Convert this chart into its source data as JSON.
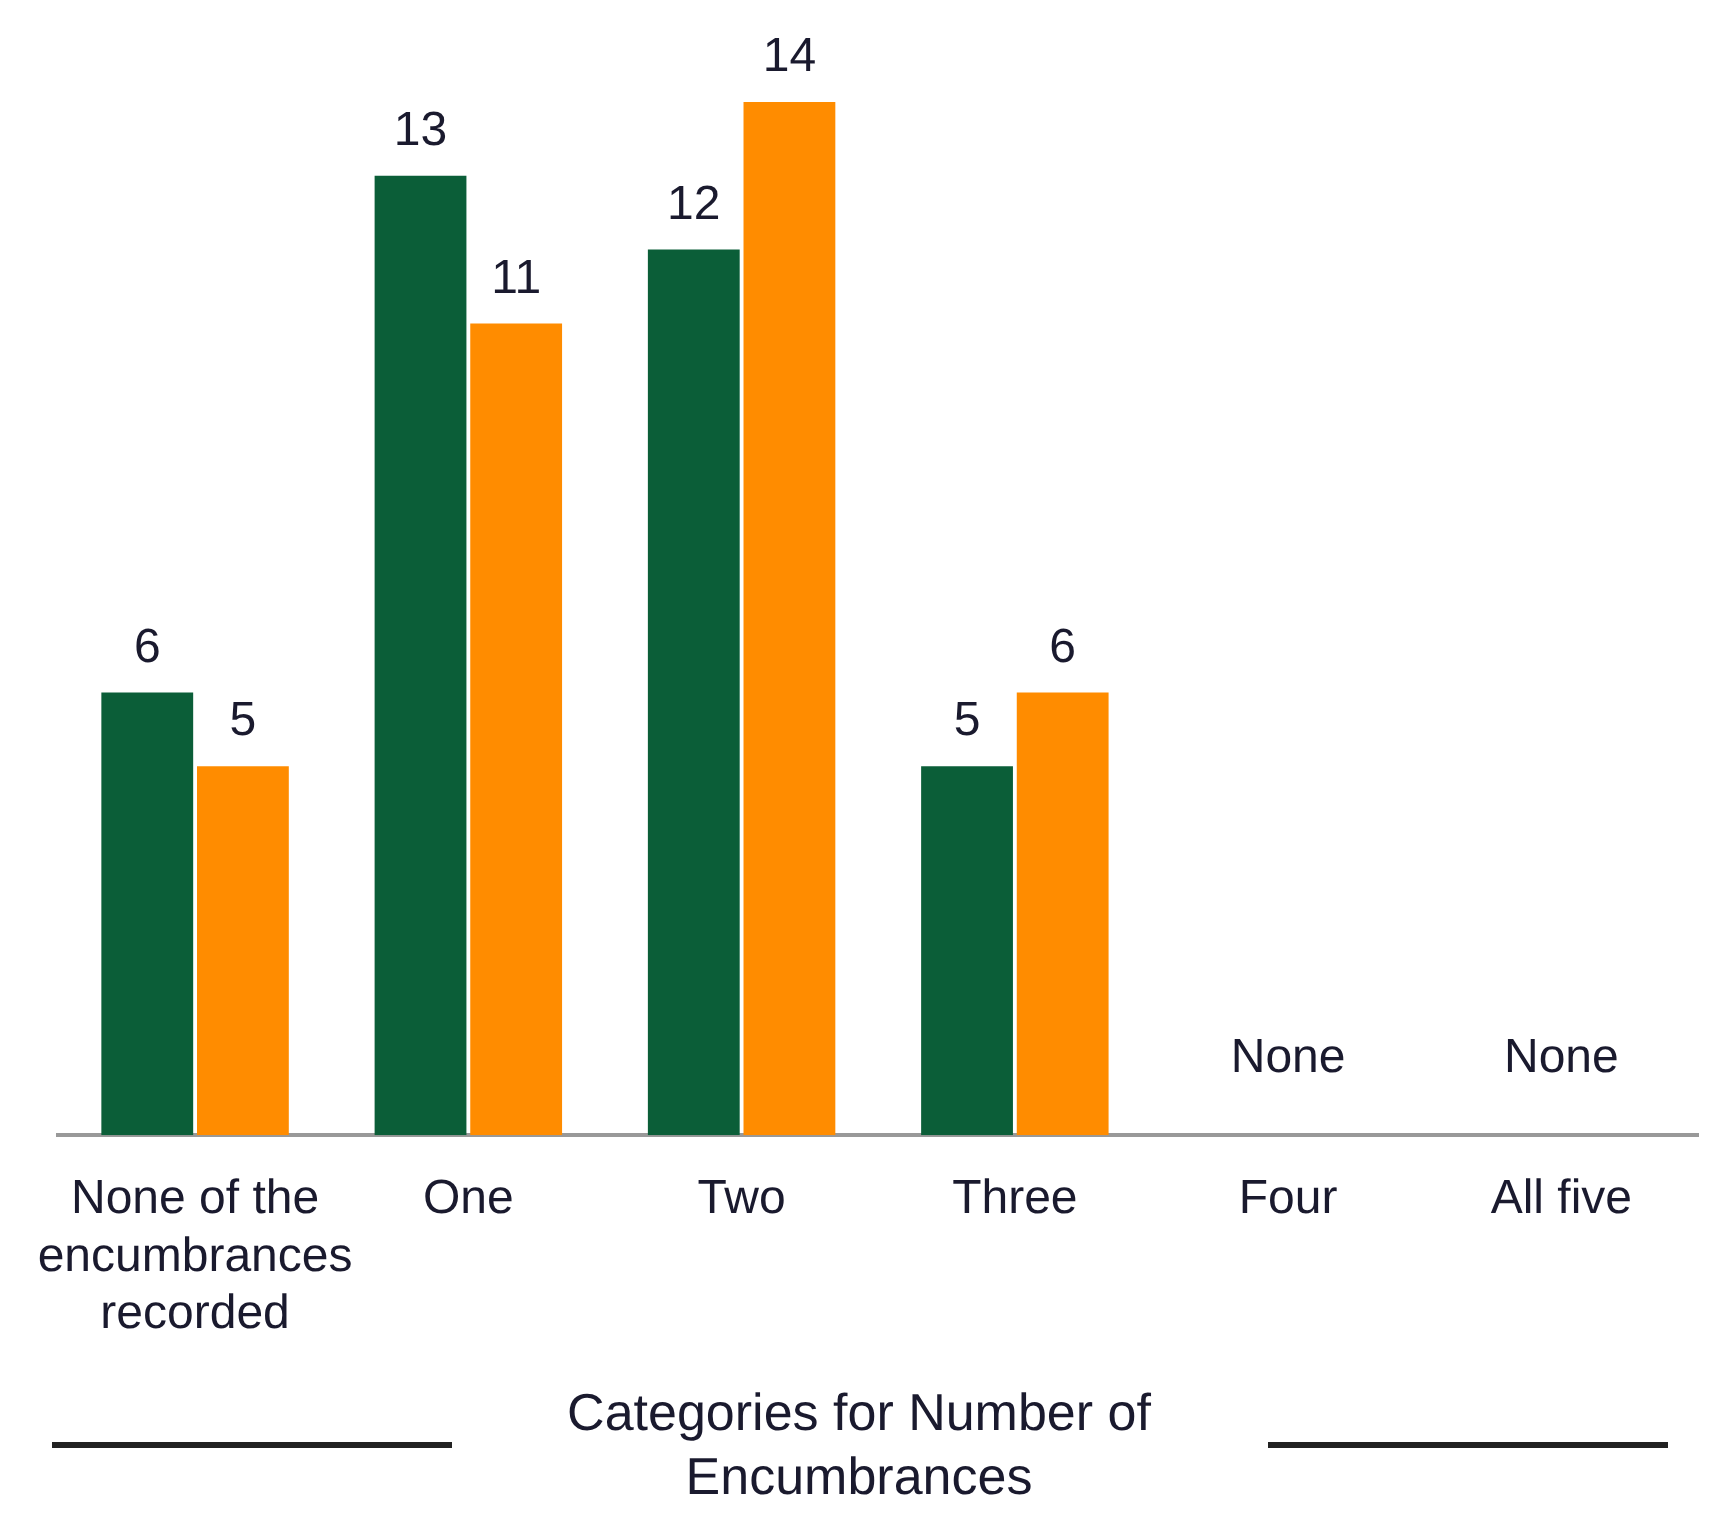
{
  "chart_data": {
    "type": "bar",
    "xlabel": "Categories for Number of Encumbrances",
    "categories": [
      "None of the encumbrances recorded",
      "One",
      "Two",
      "Three",
      "Four",
      "All five"
    ],
    "series": [
      {
        "color": "#0b5e38",
        "values": [
          6,
          13,
          12,
          5,
          0,
          0
        ],
        "value_labels": [
          "6",
          "13",
          "12",
          "5",
          "None",
          "None"
        ]
      },
      {
        "color": "#ff8c00",
        "values": [
          5,
          11,
          14,
          6,
          0,
          0
        ],
        "value_labels": [
          "5",
          "11",
          "14",
          "6",
          null,
          null
        ]
      }
    ],
    "grid": false,
    "legend": false,
    "tick_labels": "x"
  }
}
